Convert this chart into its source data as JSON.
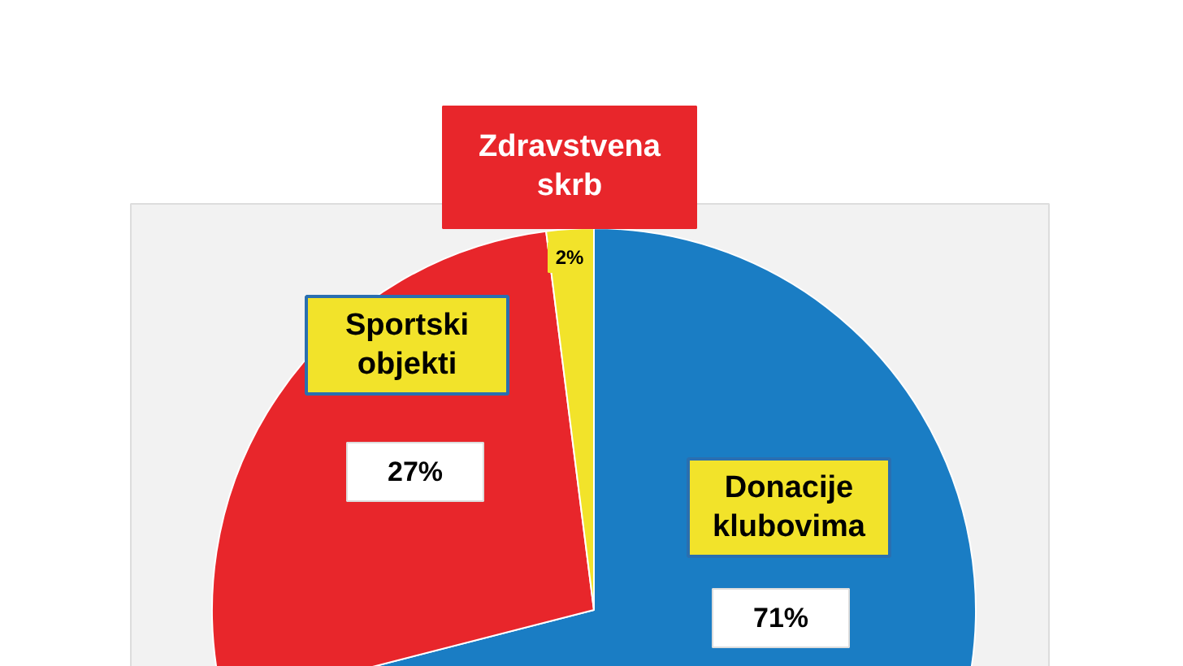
{
  "chart_data": {
    "type": "pie",
    "categories": [
      "Donacije klubovima",
      "Sportski objekti",
      "Zdravstvena skrb"
    ],
    "values": [
      71,
      27,
      2
    ],
    "colors": [
      "#1a7dc4",
      "#e8262b",
      "#f2e32a"
    ],
    "value_labels": [
      "71%",
      "27%",
      "2%"
    ]
  }
}
